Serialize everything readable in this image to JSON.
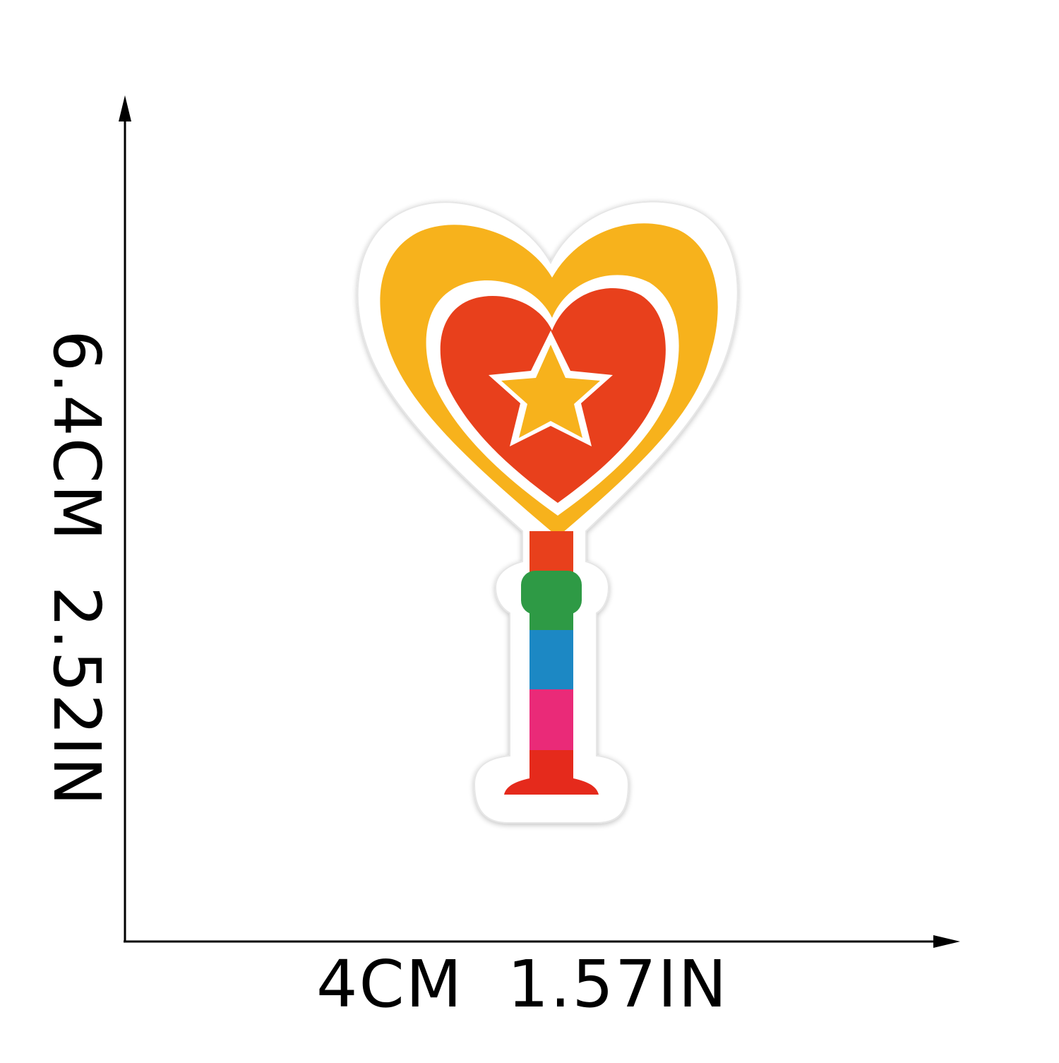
{
  "dimensions": {
    "width_text": "4CM  1.57IN",
    "height_text": "6.4CM  2.52IN"
  },
  "patch": {
    "subject": "heart-wand-embroidered-patch",
    "colors": {
      "border": "#ffffff",
      "outer_heart": "#f7b21a",
      "inner_heart": "#e8401c",
      "star": "#f7b21a",
      "stem_red": "#e8401c",
      "stem_green": "#2f9a45",
      "stem_blue": "#1e88c4",
      "stem_pink": "#ea2a78",
      "base_red": "#e52a1f",
      "axis": "#000000"
    }
  }
}
